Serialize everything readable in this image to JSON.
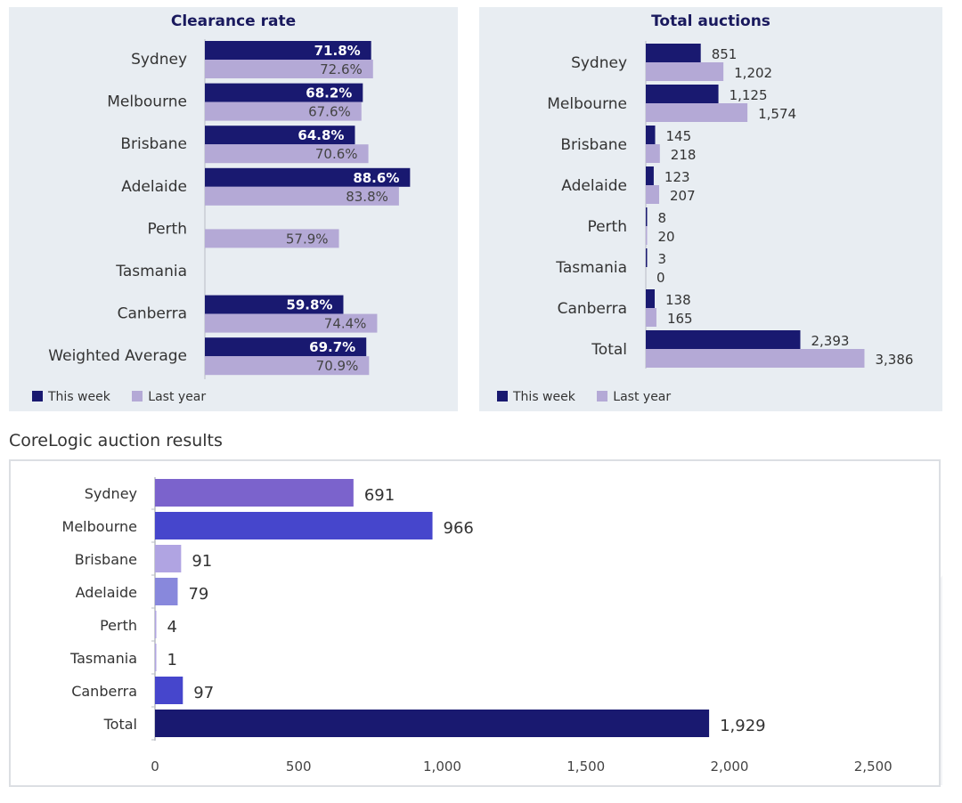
{
  "colors": {
    "this_week": "#191970",
    "last_year": "#b4a9d6",
    "panel_bg": "#e8edf2"
  },
  "results_title": "CoreLogic auction results",
  "chart_data": [
    {
      "type": "bar",
      "orientation": "horizontal",
      "title": "Clearance rate",
      "categories": [
        "Sydney",
        "Melbourne",
        "Brisbane",
        "Adelaide",
        "Perth",
        "Tasmania",
        "Canberra",
        "Weighted Average"
      ],
      "series": [
        {
          "name": "This week",
          "values": [
            71.8,
            68.2,
            64.8,
            88.6,
            null,
            null,
            59.8,
            69.7
          ],
          "labels": [
            "71.8%",
            "68.2%",
            "64.8%",
            "88.6%",
            "",
            "",
            "59.8%",
            "69.7%"
          ]
        },
        {
          "name": "Last year",
          "values": [
            72.6,
            67.6,
            70.6,
            83.8,
            57.9,
            null,
            74.4,
            70.9
          ],
          "labels": [
            "72.6%",
            "67.6%",
            "70.6%",
            "83.8%",
            "57.9%",
            "",
            "74.4%",
            "70.9%"
          ]
        }
      ],
      "xlim": [
        0,
        100
      ],
      "legend": "bottom-left"
    },
    {
      "type": "bar",
      "orientation": "horizontal",
      "title": "Total auctions",
      "categories": [
        "Sydney",
        "Melbourne",
        "Brisbane",
        "Adelaide",
        "Perth",
        "Tasmania",
        "Canberra",
        "Total"
      ],
      "series": [
        {
          "name": "This week",
          "values": [
            851,
            1125,
            145,
            123,
            8,
            3,
            138,
            2393
          ],
          "labels": [
            "851",
            "1,125",
            "145",
            "123",
            "8",
            "3",
            "138",
            "2,393"
          ]
        },
        {
          "name": "Last year",
          "values": [
            1202,
            1574,
            218,
            207,
            20,
            0,
            165,
            3386
          ],
          "labels": [
            "1,202",
            "1,574",
            "218",
            "207",
            "20",
            "0",
            "165",
            "3,386"
          ]
        }
      ],
      "xlim": [
        0,
        3400
      ],
      "legend": "bottom-left"
    },
    {
      "type": "bar",
      "orientation": "horizontal",
      "categories": [
        "Sydney",
        "Melbourne",
        "Brisbane",
        "Adelaide",
        "Perth",
        "Tasmania",
        "Canberra",
        "Total"
      ],
      "values": [
        691,
        966,
        91,
        79,
        4,
        1,
        97,
        1929
      ],
      "labels": [
        "691",
        "966",
        "91",
        "79",
        "4",
        "1",
        "97",
        "1,929"
      ],
      "bar_colors": [
        "#7b63cc",
        "#4646cc",
        "#b0a4e2",
        "#8888dc",
        "#b0a4e2",
        "#b0a4e2",
        "#4646cc",
        "#191970"
      ],
      "xlim": [
        0,
        2500
      ],
      "xticks": [
        0,
        500,
        1000,
        1500,
        2000,
        2500
      ],
      "xtick_labels": [
        "0",
        "500",
        "1,000",
        "1,500",
        "2,000",
        "2,500"
      ]
    }
  ]
}
